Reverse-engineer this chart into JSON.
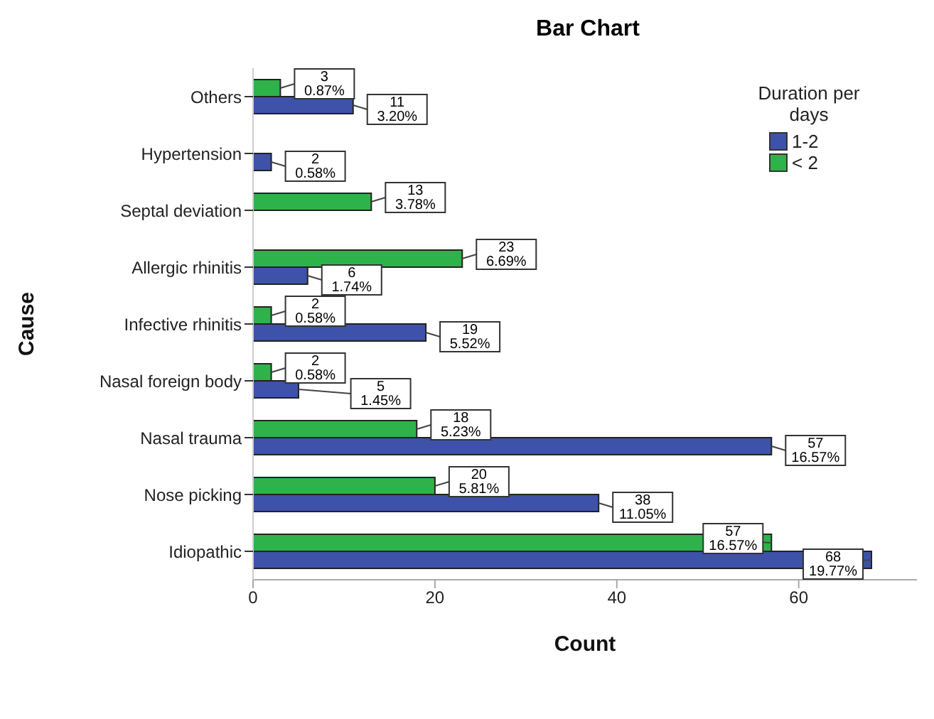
{
  "chart_data": {
    "type": "bar",
    "orientation": "horizontal",
    "title": "Bar Chart",
    "xlabel": "Count",
    "ylabel": "Cause",
    "legend_title": "Duration per days",
    "legend": "top right",
    "grid": false,
    "categories": [
      "Others",
      "Hypertension",
      "Septal deviation",
      "Allergic rhinitis",
      "Infective rhinitis",
      "Nasal foreign body",
      "Nasal trauma",
      "Nose picking",
      "Idiopathic"
    ],
    "xlim": [
      0,
      73
    ],
    "xticks": [
      0,
      20,
      40,
      60
    ],
    "series": [
      {
        "name": "< 2",
        "color": "#2db34a",
        "values": [
          3,
          null,
          13,
          23,
          2,
          2,
          18,
          20,
          57
        ],
        "value_labels": [
          "3\n0.87%",
          null,
          "13\n3.78%",
          "23\n6.69%",
          "2\n0.58%",
          "2\n0.58%",
          "18\n5.23%",
          "20\n5.81%",
          "57\n16.57%"
        ]
      },
      {
        "name": "1-2",
        "color": "#3d52a8",
        "values": [
          11,
          2,
          null,
          6,
          19,
          5,
          57,
          38,
          68
        ],
        "value_labels": [
          "11\n3.20%",
          "2\n0.58%",
          null,
          "6\n1.74%",
          "19\n5.52%",
          "5\n1.45%",
          "57\n16.57%",
          "38\n11.05%",
          "68\n19.77%"
        ]
      }
    ]
  }
}
